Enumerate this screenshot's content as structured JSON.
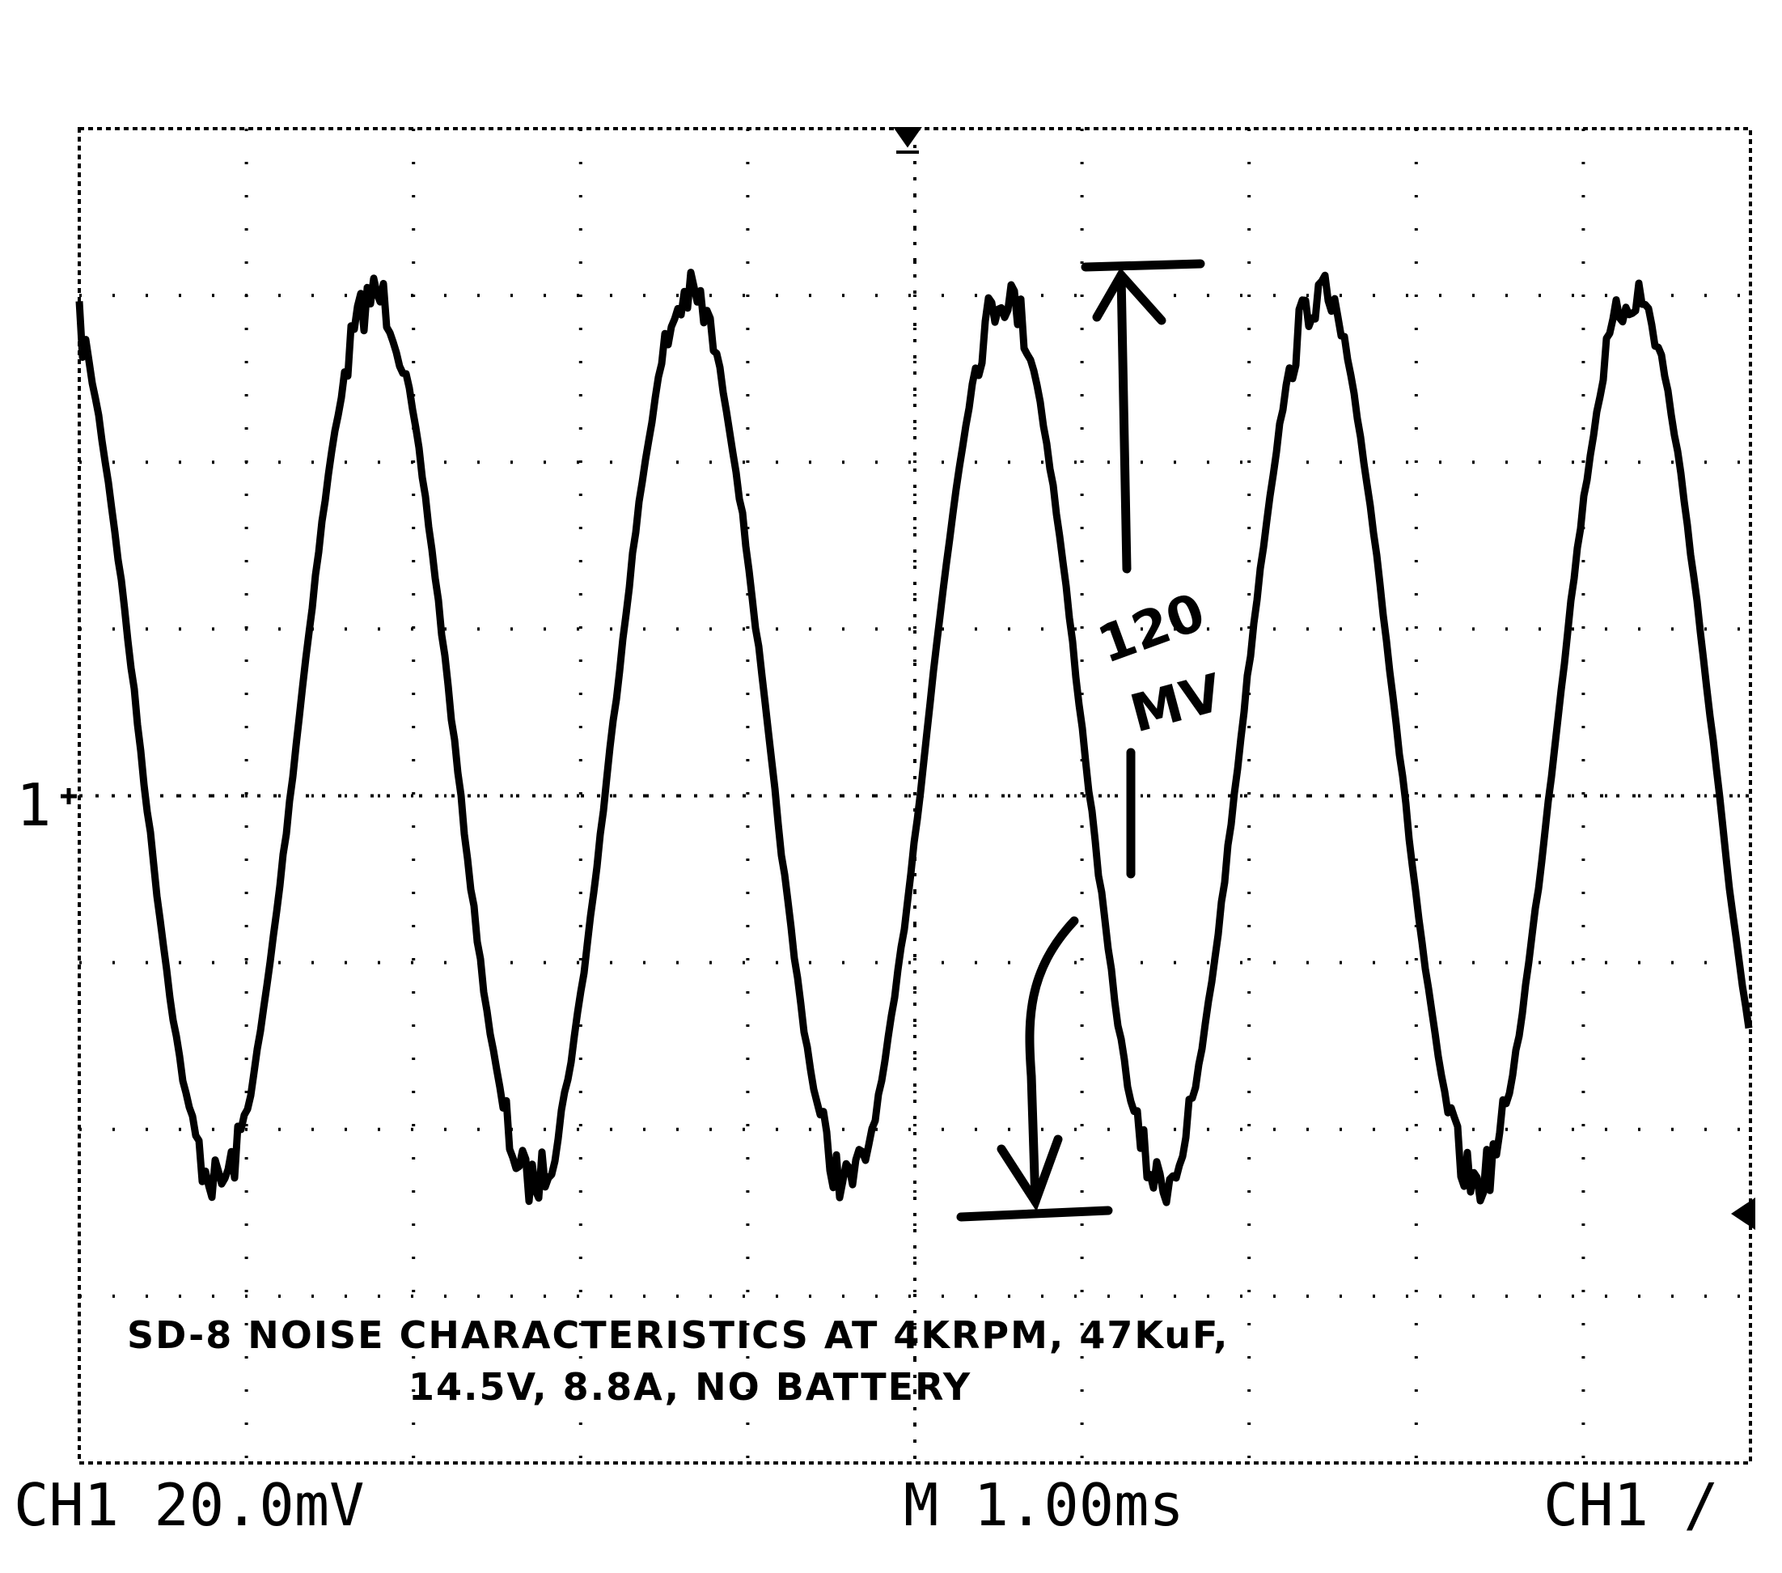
{
  "readout": {
    "ch1_scale": "CH1  20.0mV",
    "timebase": "M 1.00ms",
    "trigger": "CH1 /"
  },
  "marker": "1",
  "annotation": {
    "caption": [
      "SD-8 NOISE CHARACTERISTICS AT 4KRPM, 47KuF,",
      "14.5V, 8.8A, NO BATTERY"
    ],
    "handwritten": [
      "120",
      "MV"
    ]
  }
}
